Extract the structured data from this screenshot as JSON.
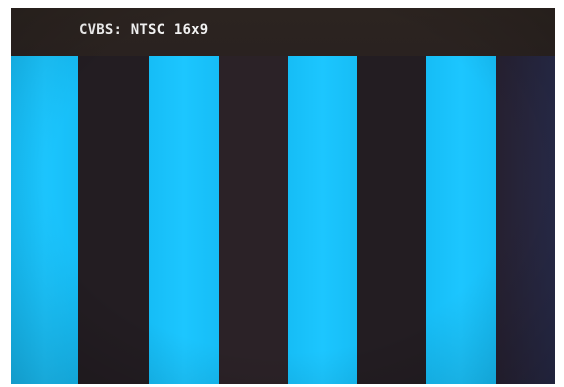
{
  "osd": {
    "label": "CVBS: NTSC 16x9"
  },
  "colors": {
    "osd_background": "#2c2420",
    "osd_text": "#f2f2f2",
    "bar_cyan": "#1cc6ff",
    "bar_dark": "#231d22"
  }
}
